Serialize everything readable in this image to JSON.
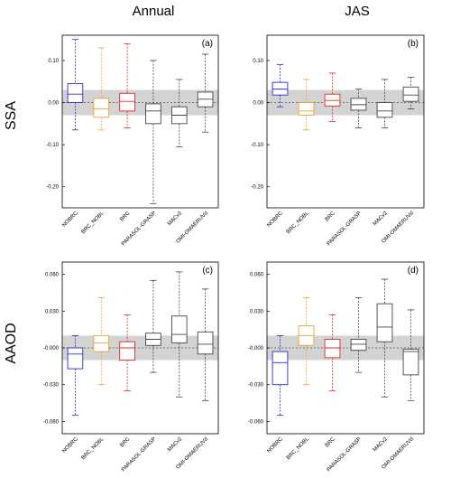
{
  "figure": {
    "column_titles": [
      "Annual",
      "JAS"
    ],
    "row_labels": [
      "SSA",
      "AAOD"
    ]
  },
  "colors": {
    "NOBRC": "#2b2bd6",
    "BRC_NOBL": "#f0a030",
    "BRC": "#e02828",
    "other": "#444444",
    "band": "#d3d3d3"
  },
  "chart_data": [
    {
      "type": "box",
      "panel_label": "(a)",
      "row": "SSA",
      "column": "Annual",
      "categories": [
        "NOBRC",
        "BRC_NOBL",
        "BRC",
        "PARASOL-GRASP",
        "MACv2",
        "OMI-OMAERUVd"
      ],
      "ylim": [
        -0.25,
        0.16
      ],
      "yticks": [
        0.1,
        0.0,
        -0.1,
        -0.2
      ],
      "ytick_labels": [
        "0.10",
        "0.00",
        "-0.10",
        "-0.20"
      ],
      "reference_line": 0.0,
      "shaded_band": [
        -0.03,
        0.03
      ],
      "boxes": [
        {
          "whisker_low": -0.065,
          "q1": 0.0,
          "median": 0.02,
          "q3": 0.045,
          "whisker_high": 0.15
        },
        {
          "whisker_low": -0.065,
          "q1": -0.035,
          "median": -0.015,
          "q3": 0.01,
          "whisker_high": 0.13
        },
        {
          "whisker_low": -0.06,
          "q1": -0.02,
          "median": 0.003,
          "q3": 0.022,
          "whisker_high": 0.14
        },
        {
          "whisker_low": -0.24,
          "q1": -0.05,
          "median": -0.02,
          "q3": -0.003,
          "whisker_high": 0.1
        },
        {
          "whisker_low": -0.105,
          "q1": -0.05,
          "median": -0.03,
          "q3": -0.01,
          "whisker_high": 0.055
        },
        {
          "whisker_low": -0.07,
          "q1": -0.01,
          "median": 0.008,
          "q3": 0.025,
          "whisker_high": 0.115
        }
      ]
    },
    {
      "type": "box",
      "panel_label": "(b)",
      "row": "SSA",
      "column": "JAS",
      "categories": [
        "NOBRC",
        "BRC_NOBL",
        "BRC",
        "PARASOL-GRASP",
        "MACv2",
        "OMI-OMAERUVd"
      ],
      "ylim": [
        -0.25,
        0.16
      ],
      "yticks": [
        0.1,
        0.0,
        -0.1,
        -0.2
      ],
      "ytick_labels": [
        "0.10",
        "0.00",
        "-0.10",
        "-0.20"
      ],
      "reference_line": 0.0,
      "shaded_band": [
        -0.03,
        0.03
      ],
      "boxes": [
        {
          "whisker_low": -0.01,
          "q1": 0.018,
          "median": 0.032,
          "q3": 0.048,
          "whisker_high": 0.09
        },
        {
          "whisker_low": -0.065,
          "q1": -0.03,
          "median": -0.02,
          "q3": 0.0,
          "whisker_high": 0.055
        },
        {
          "whisker_low": -0.045,
          "q1": -0.008,
          "median": 0.005,
          "q3": 0.02,
          "whisker_high": 0.07
        },
        {
          "whisker_low": -0.06,
          "q1": -0.018,
          "median": -0.005,
          "q3": 0.01,
          "whisker_high": 0.032
        },
        {
          "whisker_low": -0.06,
          "q1": -0.035,
          "median": -0.02,
          "q3": 0.0,
          "whisker_high": 0.055
        },
        {
          "whisker_low": -0.015,
          "q1": 0.003,
          "median": 0.018,
          "q3": 0.037,
          "whisker_high": 0.06
        }
      ]
    },
    {
      "type": "box",
      "panel_label": "(c)",
      "row": "AAOD",
      "column": "Annual",
      "categories": [
        "NOBRC",
        "BRC_NOBL",
        "BRC",
        "PARASOL-GRASP",
        "MACv2",
        "OMI-OMAERUVd"
      ],
      "ylim": [
        -0.07,
        0.07
      ],
      "yticks": [
        0.06,
        0.03,
        0.0,
        -0.03,
        -0.06
      ],
      "ytick_labels": [
        "0.060",
        "0.030",
        "-0.000",
        "-0.030",
        "-0.060"
      ],
      "reference_line": 0.0,
      "shaded_band": [
        -0.01,
        0.01
      ],
      "boxes": [
        {
          "whisker_low": -0.055,
          "q1": -0.017,
          "median": -0.005,
          "q3": 0.0,
          "whisker_high": 0.01
        },
        {
          "whisker_low": -0.03,
          "q1": -0.003,
          "median": 0.004,
          "q3": 0.01,
          "whisker_high": 0.041
        },
        {
          "whisker_low": -0.035,
          "q1": -0.01,
          "median": 0.0,
          "q3": 0.005,
          "whisker_high": 0.027
        },
        {
          "whisker_low": -0.02,
          "q1": 0.002,
          "median": 0.007,
          "q3": 0.012,
          "whisker_high": 0.055
        },
        {
          "whisker_low": -0.04,
          "q1": 0.004,
          "median": 0.011,
          "q3": 0.026,
          "whisker_high": 0.062
        },
        {
          "whisker_low": -0.043,
          "q1": -0.005,
          "median": 0.003,
          "q3": 0.013,
          "whisker_high": 0.048
        }
      ]
    },
    {
      "type": "box",
      "panel_label": "(d)",
      "row": "AAOD",
      "column": "JAS",
      "categories": [
        "NOBRC",
        "BRC_NOBL",
        "BRC",
        "PARASOL-GRASP",
        "MACv2",
        "OMI-OMAERUVd"
      ],
      "ylim": [
        -0.07,
        0.07
      ],
      "yticks": [
        0.06,
        0.03,
        0.0,
        -0.03,
        -0.06
      ],
      "ytick_labels": [
        "0.060",
        "0.030",
        "-0.000",
        "-0.030",
        "-0.060"
      ],
      "reference_line": 0.0,
      "shaded_band": [
        -0.01,
        0.01
      ],
      "boxes": [
        {
          "whisker_low": -0.055,
          "q1": -0.03,
          "median": -0.012,
          "q3": -0.003,
          "whisker_high": 0.01
        },
        {
          "whisker_low": -0.03,
          "q1": 0.002,
          "median": 0.01,
          "q3": 0.018,
          "whisker_high": 0.041
        },
        {
          "whisker_low": -0.035,
          "q1": -0.008,
          "median": 0.0,
          "q3": 0.007,
          "whisker_high": 0.027
        },
        {
          "whisker_low": -0.02,
          "q1": -0.002,
          "median": 0.003,
          "q3": 0.007,
          "whisker_high": 0.041
        },
        {
          "whisker_low": -0.04,
          "q1": 0.005,
          "median": 0.017,
          "q3": 0.036,
          "whisker_high": 0.056
        },
        {
          "whisker_low": -0.043,
          "q1": -0.022,
          "median": -0.003,
          "q3": -0.001,
          "whisker_high": 0.031
        }
      ]
    }
  ]
}
